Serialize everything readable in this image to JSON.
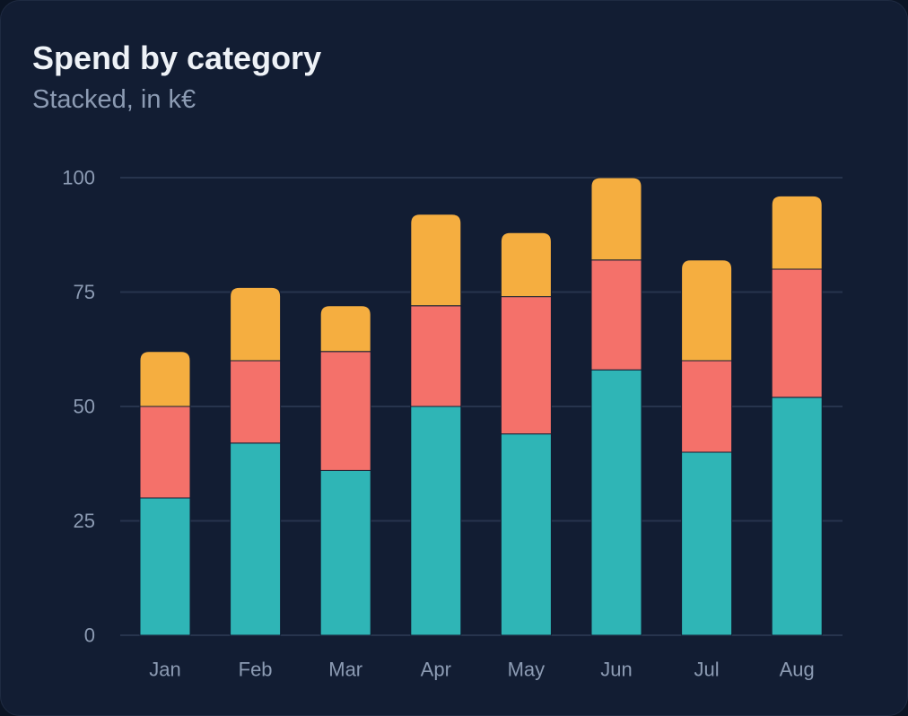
{
  "card": {
    "title": "Spend by category",
    "subtitle": "Stacked, in k€"
  },
  "chart_data": {
    "type": "bar",
    "stacked": true,
    "title": "Spend by category",
    "subtitle": "Stacked, in k€",
    "categories": [
      "Jan",
      "Feb",
      "Mar",
      "Apr",
      "May",
      "Jun",
      "Jul",
      "Aug"
    ],
    "series": [
      {
        "color": "#2fb5b6",
        "values": [
          30,
          42,
          36,
          50,
          44,
          58,
          40,
          52
        ]
      },
      {
        "color": "#f4716a",
        "values": [
          20,
          18,
          26,
          22,
          30,
          24,
          20,
          28
        ]
      },
      {
        "color": "#f5ae40",
        "values": [
          12,
          16,
          10,
          20,
          14,
          18,
          22,
          16
        ]
      }
    ],
    "ylim": [
      0,
      100
    ],
    "yticks": [
      0,
      25,
      50,
      75,
      100
    ],
    "grid": true,
    "legend": "none"
  }
}
